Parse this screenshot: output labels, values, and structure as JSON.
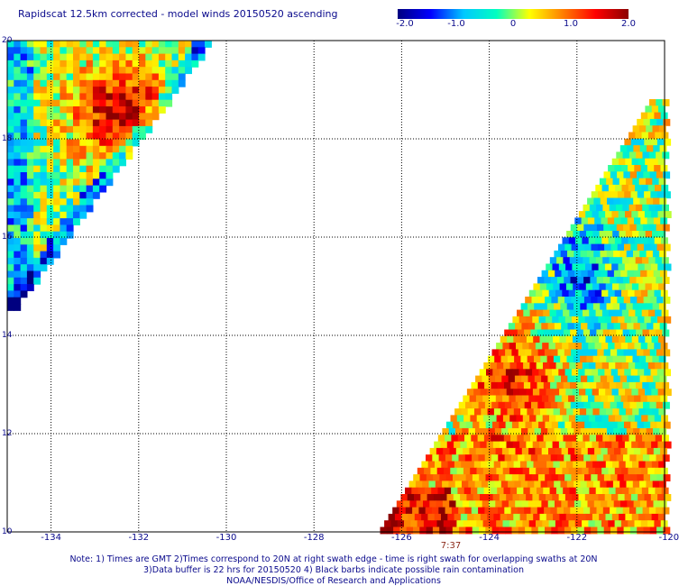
{
  "title": "Rapidscat 12.5km corrected - model winds 20150520 ascending",
  "colorbar": {
    "labels": [
      "-2.0",
      "-1.0",
      "0",
      "1.0",
      "2.0"
    ],
    "stops": [
      "#000080",
      "#0000ff",
      "#00c8ff",
      "#00ffc0",
      "#ffff00",
      "#ff8000",
      "#ff0000",
      "#8b0000"
    ]
  },
  "map": {
    "lat_labels": [
      "20",
      "18",
      "16",
      "14",
      "12",
      "10"
    ],
    "lon_labels": [
      "-134",
      "-132",
      "-130",
      "-128",
      "-126",
      "-124",
      "-122",
      "-120"
    ],
    "lat_range": [
      10,
      20
    ],
    "lon_range": [
      -135,
      -120
    ],
    "grid": true,
    "time_label": "7:37"
  },
  "footer": {
    "line1": "Note: 1) Times are GMT 2)Times correspond to 20N at right swath edge - time is right swath for overlapping swaths at 20N",
    "line2": "3)Data buffer is 22 hrs for 20150520 4) Black barbs indicate possible rain contamination",
    "line3": "NOAA/NESDIS/Office of Research and Applications"
  }
}
